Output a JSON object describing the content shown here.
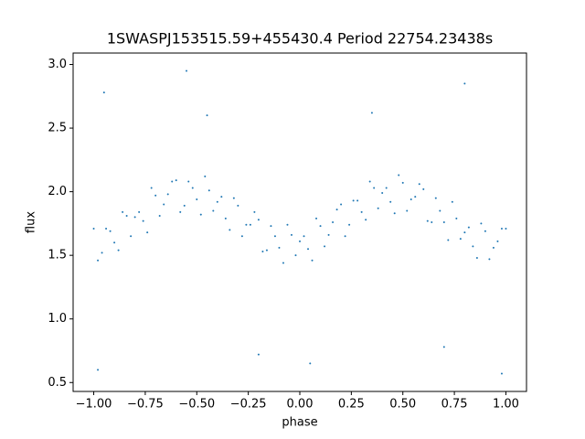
{
  "chart_data": {
    "type": "scatter",
    "title": "1SWASPJ153515.59+455430.4 Period 22754.23438s",
    "x_label": "phase",
    "y_label": "flux",
    "color": "#1f77b4",
    "xlim": [
      -1.1,
      1.1
    ],
    "ylim": [
      0.43,
      3.09
    ],
    "xticks": [
      {
        "value": -1,
        "label": "−1.00"
      },
      {
        "value": -0.75,
        "label": "−0.75"
      },
      {
        "value": -0.5,
        "label": "−0.50"
      },
      {
        "value": -0.25,
        "label": "−0.25"
      },
      {
        "value": 0,
        "label": "0.00"
      },
      {
        "value": 0.25,
        "label": "0.25"
      },
      {
        "value": 0.5,
        "label": "0.50"
      },
      {
        "value": 0.75,
        "label": "0.75"
      },
      {
        "value": 1,
        "label": "1.00"
      }
    ],
    "yticks": [
      0.5,
      {
        "value": 1,
        "label": "1.0"
      },
      1.5,
      {
        "value": 2,
        "label": "2.0"
      },
      2.5,
      {
        "value": 3,
        "label": "3.0"
      }
    ],
    "x": [
      -1.0,
      -0.96,
      -0.92,
      -0.88,
      -0.84,
      -0.8,
      -0.76,
      -0.72,
      -0.68,
      -0.64,
      -0.6,
      -0.56,
      -0.52,
      -0.48,
      -0.44,
      -0.4,
      -0.36,
      -0.32,
      -0.28,
      -0.24,
      -0.2,
      -0.16,
      -0.12,
      -0.08,
      -0.04,
      0.0,
      0.04,
      0.08,
      0.12,
      0.16,
      0.2,
      0.24,
      0.28,
      0.32,
      0.36,
      0.4,
      0.44,
      0.48,
      0.52,
      0.56,
      0.6,
      0.64,
      0.68,
      0.72,
      0.76,
      0.8,
      0.84,
      0.88,
      0.92,
      0.96,
      1.0,
      -0.98,
      -0.94,
      -0.9,
      -0.86,
      -0.82,
      -0.78,
      -0.74,
      -0.7,
      -0.66,
      -0.62,
      -0.58,
      -0.54,
      -0.5,
      -0.46,
      -0.42,
      -0.38,
      -0.34,
      -0.3,
      -0.26,
      -0.22,
      -0.18,
      -0.14,
      -0.1,
      -0.06,
      -0.02,
      0.02,
      0.06,
      0.1,
      0.14,
      0.18,
      0.22,
      0.26,
      0.3,
      0.34,
      0.38,
      0.42,
      0.46,
      0.5,
      0.54,
      0.58,
      0.62,
      0.66,
      0.7,
      0.74,
      0.78,
      0.82,
      0.86,
      0.9,
      0.94,
      0.98,
      -0.95,
      -0.55,
      0.35,
      0.8,
      -0.2,
      0.05,
      0.7,
      -0.98,
      0.98,
      -0.45
    ],
    "y": [
      1.71,
      1.52,
      1.69,
      1.54,
      1.81,
      1.8,
      1.77,
      2.03,
      1.81,
      1.98,
      2.09,
      1.89,
      2.03,
      1.82,
      2.01,
      1.92,
      1.79,
      1.95,
      1.65,
      1.74,
      1.78,
      1.54,
      1.65,
      1.44,
      1.66,
      1.61,
      1.55,
      1.79,
      1.57,
      1.76,
      1.9,
      1.74,
      1.93,
      1.78,
      2.03,
      1.99,
      1.92,
      2.13,
      1.85,
      1.96,
      2.02,
      1.76,
      1.85,
      1.62,
      1.79,
      1.68,
      1.57,
      1.75,
      1.47,
      1.61,
      1.71,
      1.46,
      1.71,
      1.6,
      1.84,
      1.65,
      1.84,
      1.68,
      1.97,
      1.9,
      2.08,
      1.84,
      2.08,
      1.94,
      2.12,
      1.85,
      1.96,
      1.7,
      1.89,
      1.74,
      1.84,
      1.53,
      1.73,
      1.56,
      1.74,
      1.5,
      1.65,
      1.46,
      1.73,
      1.66,
      1.86,
      1.65,
      1.93,
      1.84,
      2.08,
      1.87,
      2.03,
      1.83,
      2.07,
      1.94,
      2.06,
      1.77,
      1.95,
      1.76,
      1.92,
      1.63,
      1.72,
      1.48,
      1.69,
      1.56,
      1.71,
      2.78,
      2.95,
      2.62,
      2.85,
      0.72,
      0.65,
      0.78,
      0.6,
      0.57,
      2.6
    ]
  }
}
